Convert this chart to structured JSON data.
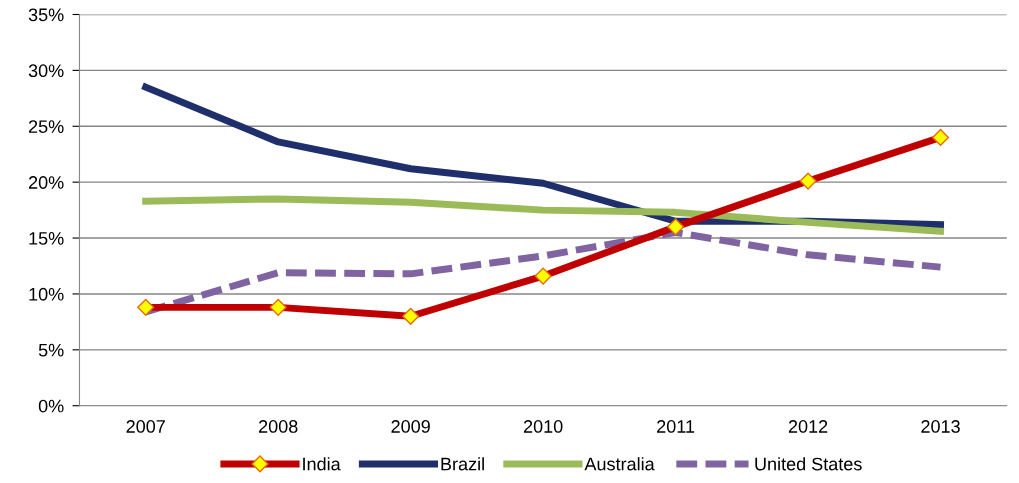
{
  "chart_data": {
    "type": "line",
    "categories": [
      "2007",
      "2008",
      "2009",
      "2010",
      "2011",
      "2012",
      "2013"
    ],
    "series": [
      {
        "name": "India",
        "color": "#c00000",
        "marker": "diamond",
        "values": [
          8.8,
          8.8,
          8.0,
          11.6,
          16.0,
          20.1,
          24.0
        ]
      },
      {
        "name": "Brazil",
        "color": "#1f2f6b",
        "values": [
          28.5,
          23.6,
          21.2,
          19.9,
          16.5,
          16.5,
          16.2
        ]
      },
      {
        "name": "Australia",
        "color": "#9bbb59",
        "values": [
          18.3,
          18.5,
          18.2,
          17.5,
          17.3,
          16.4,
          15.6
        ]
      },
      {
        "name": "United States",
        "color": "#8064a2",
        "line_style": "dashed",
        "values": [
          8.4,
          11.9,
          11.8,
          13.4,
          15.5,
          13.5,
          12.4
        ]
      }
    ],
    "ylim": [
      0,
      35
    ],
    "yticks": [
      {
        "value": 0,
        "label": "0%"
      },
      {
        "value": 5,
        "label": "5%"
      },
      {
        "value": 10,
        "label": "10%"
      },
      {
        "value": 15,
        "label": "15%"
      },
      {
        "value": 20,
        "label": "20%"
      },
      {
        "value": 25,
        "label": "25%"
      },
      {
        "value": 30,
        "label": "30%"
      },
      {
        "value": 35,
        "label": "35%"
      }
    ],
    "grid": "y",
    "legend": "bottom"
  }
}
